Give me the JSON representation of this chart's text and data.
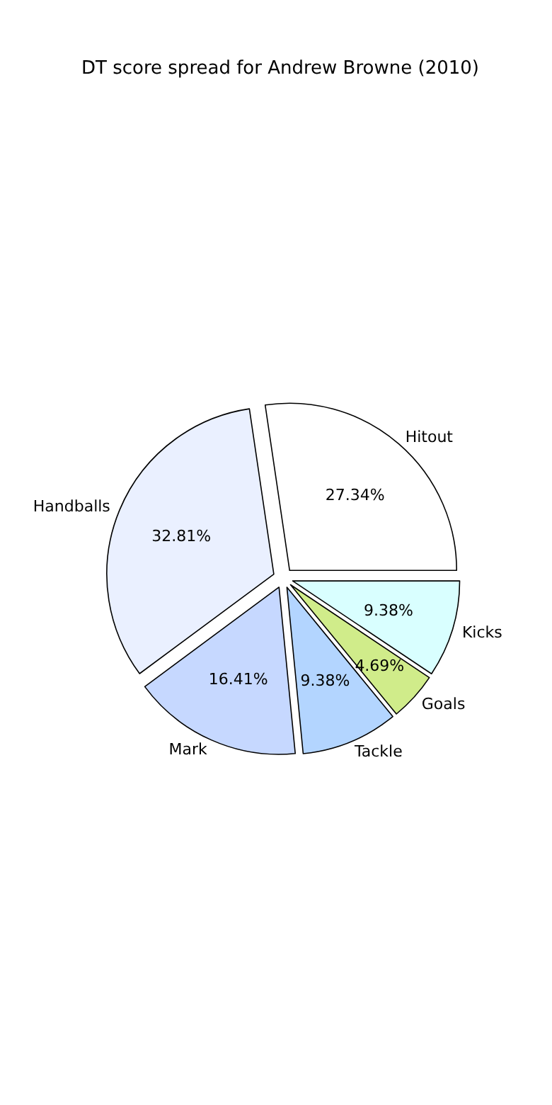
{
  "chart_data": {
    "type": "pie",
    "title": "DT score spread for Andrew Browne (2010)",
    "categories": [
      "Hitout",
      "Handballs",
      "Mark",
      "Tackle",
      "Goals",
      "Kicks"
    ],
    "values": [
      27.34,
      32.81,
      16.41,
      9.38,
      4.69,
      9.38
    ],
    "value_labels": [
      "27.34%",
      "32.81%",
      "16.41%",
      "9.38%",
      "4.69%",
      "9.38%"
    ],
    "colors": [
      "#ffffff",
      "#eaf0ff",
      "#c6d8ff",
      "#b3d5ff",
      "#d0ec8a",
      "#d9ffff"
    ],
    "legend": false
  }
}
